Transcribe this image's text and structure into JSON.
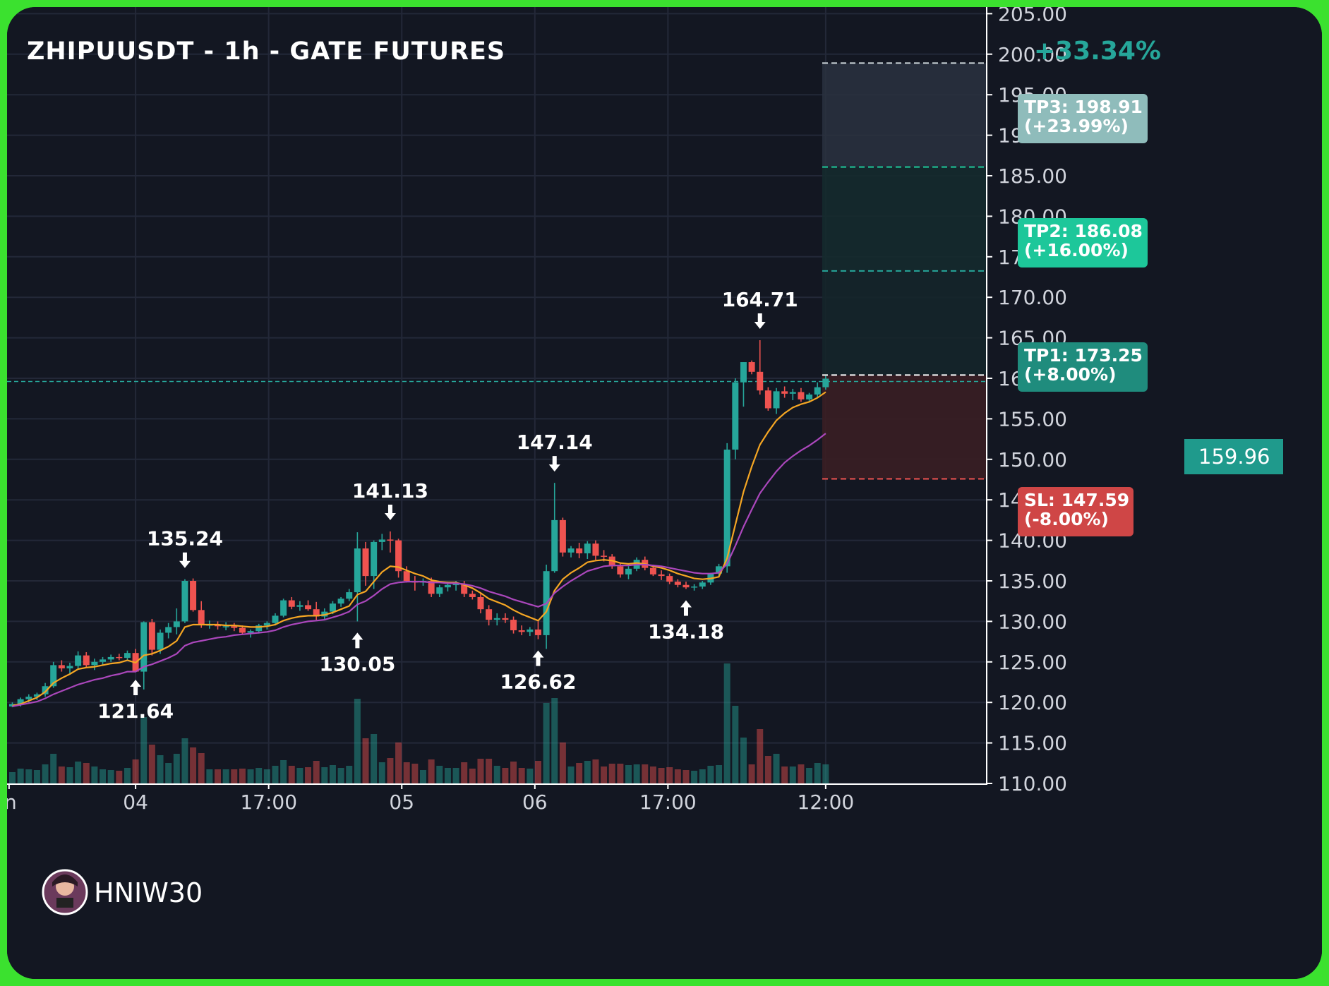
{
  "chart_data": {
    "type": "candlestick",
    "title": "ZHIPUUSDT - 1h - GATE FUTURES",
    "ylim": [
      110,
      205
    ],
    "y_ticks": [
      "205.00",
      "200.00",
      "195.00",
      "190.00",
      "185.00",
      "180.00",
      "175.00",
      "170.00",
      "165.00",
      "160.00",
      "155.00",
      "150.00",
      "145.00",
      "140.00",
      "135.00",
      "130.00",
      "125.00",
      "120.00",
      "115.00",
      "110.00"
    ],
    "x_ticks": [
      "n",
      "04",
      "17:00",
      "05",
      "06",
      "17:00",
      "12:00"
    ],
    "current_price": "159.96",
    "position_change": "+33.34%",
    "targets": [
      {
        "label": "TP3: 198.91",
        "pct": "(+23.99%)",
        "price": 198.91
      },
      {
        "label": "TP2: 186.08",
        "pct": "(+16.00%)",
        "price": 186.08
      },
      {
        "label": "TP1: 173.25",
        "pct": "(+8.00%)",
        "price": 173.25
      },
      {
        "label": "SL: 147.59",
        "pct": "(-8.00%)",
        "price": 147.59
      }
    ],
    "entry_price": 160.4,
    "annotations": [
      {
        "text": "121.64",
        "type": "low"
      },
      {
        "text": "135.24",
        "type": "high"
      },
      {
        "text": "130.05",
        "type": "low"
      },
      {
        "text": "141.13",
        "type": "high"
      },
      {
        "text": "126.62",
        "type": "low"
      },
      {
        "text": "147.14",
        "type": "high"
      },
      {
        "text": "134.18",
        "type": "low"
      },
      {
        "text": "164.71",
        "type": "high"
      }
    ],
    "candles": [
      [
        119.5,
        120.0,
        119.4,
        119.8
      ],
      [
        119.8,
        120.6,
        119.5,
        120.4
      ],
      [
        120.4,
        121.0,
        120.0,
        120.7
      ],
      [
        120.7,
        121.2,
        120.3,
        121.0
      ],
      [
        121.0,
        122.4,
        120.7,
        122.0
      ],
      [
        122.0,
        125.0,
        121.8,
        124.6
      ],
      [
        124.6,
        125.2,
        123.8,
        124.2
      ],
      [
        124.2,
        124.9,
        123.6,
        124.5
      ],
      [
        124.5,
        126.3,
        124.2,
        125.8
      ],
      [
        125.8,
        126.2,
        124.3,
        124.6
      ],
      [
        124.6,
        125.4,
        124.0,
        125.0
      ],
      [
        125.0,
        125.6,
        124.6,
        125.3
      ],
      [
        125.3,
        125.9,
        125.0,
        125.6
      ],
      [
        125.6,
        126.0,
        125.2,
        125.5
      ],
      [
        125.5,
        126.4,
        125.2,
        126.1
      ],
      [
        126.1,
        126.6,
        124.2,
        123.8
      ],
      [
        123.8,
        130.0,
        121.6,
        129.9
      ],
      [
        129.9,
        130.3,
        125.8,
        126.5
      ],
      [
        126.5,
        129.0,
        126.0,
        128.6
      ],
      [
        128.6,
        129.8,
        127.9,
        129.3
      ],
      [
        129.3,
        131.6,
        128.4,
        130.0
      ],
      [
        130.0,
        135.2,
        129.8,
        135.0
      ],
      [
        135.0,
        135.3,
        131.2,
        131.4
      ],
      [
        131.4,
        132.5,
        129.2,
        129.6
      ],
      [
        129.6,
        130.1,
        129.1,
        129.6
      ],
      [
        129.6,
        130.0,
        129.0,
        129.4
      ],
      [
        129.4,
        129.9,
        128.9,
        129.4
      ],
      [
        129.4,
        129.8,
        128.8,
        129.2
      ],
      [
        129.2,
        129.5,
        128.4,
        128.6
      ],
      [
        128.6,
        129.0,
        128.0,
        128.8
      ],
      [
        128.8,
        129.7,
        128.5,
        129.5
      ],
      [
        129.5,
        130.0,
        129.0,
        129.8
      ],
      [
        129.8,
        131.0,
        129.5,
        130.7
      ],
      [
        130.7,
        132.8,
        130.5,
        132.6
      ],
      [
        132.6,
        133.0,
        131.5,
        131.8
      ],
      [
        131.8,
        132.5,
        131.3,
        132.0
      ],
      [
        132.0,
        132.6,
        131.3,
        131.5
      ],
      [
        131.5,
        132.4,
        130.2,
        130.6
      ],
      [
        130.6,
        131.6,
        130.3,
        131.2
      ],
      [
        131.2,
        132.5,
        130.9,
        132.2
      ],
      [
        132.2,
        133.0,
        131.8,
        132.8
      ],
      [
        132.8,
        134.0,
        132.5,
        133.6
      ],
      [
        133.6,
        141.0,
        130.0,
        139.0
      ],
      [
        139.0,
        139.8,
        134.4,
        135.6
      ],
      [
        135.6,
        140.0,
        134.0,
        139.8
      ],
      [
        139.8,
        140.8,
        138.8,
        140.1
      ],
      [
        140.1,
        141.1,
        138.5,
        140.0
      ],
      [
        140.0,
        140.2,
        135.4,
        136.2
      ],
      [
        136.2,
        136.8,
        134.8,
        135.0
      ],
      [
        135.0,
        135.6,
        133.8,
        134.8
      ],
      [
        134.8,
        135.3,
        134.4,
        135.0
      ],
      [
        135.0,
        135.4,
        133.0,
        133.4
      ],
      [
        133.4,
        134.5,
        133.0,
        134.2
      ],
      [
        134.2,
        134.9,
        133.7,
        134.5
      ],
      [
        134.5,
        135.0,
        133.8,
        134.6
      ],
      [
        134.6,
        135.0,
        133.0,
        133.4
      ],
      [
        133.4,
        133.8,
        132.7,
        133.0
      ],
      [
        133.0,
        133.5,
        131.0,
        131.5
      ],
      [
        131.5,
        132.0,
        129.5,
        130.2
      ],
      [
        130.2,
        131.0,
        129.5,
        130.4
      ],
      [
        130.4,
        131.0,
        129.8,
        130.2
      ],
      [
        130.2,
        130.6,
        128.5,
        128.9
      ],
      [
        128.9,
        129.5,
        128.3,
        128.7
      ],
      [
        128.7,
        129.3,
        128.2,
        129.0
      ],
      [
        129.0,
        130.0,
        127.8,
        128.3
      ],
      [
        128.3,
        137.0,
        126.6,
        136.2
      ],
      [
        136.2,
        147.1,
        136.0,
        142.5
      ],
      [
        142.5,
        142.8,
        138.0,
        138.5
      ],
      [
        138.5,
        139.3,
        137.9,
        139.0
      ],
      [
        139.0,
        139.7,
        137.8,
        138.4
      ],
      [
        138.4,
        139.9,
        137.7,
        139.6
      ],
      [
        139.6,
        140.0,
        137.6,
        138.1
      ],
      [
        138.1,
        138.8,
        137.4,
        138.0
      ],
      [
        138.0,
        138.3,
        136.5,
        136.8
      ],
      [
        136.8,
        137.2,
        135.4,
        135.8
      ],
      [
        135.8,
        136.8,
        135.2,
        136.5
      ],
      [
        136.5,
        137.9,
        136.2,
        137.6
      ],
      [
        137.6,
        138.0,
        136.3,
        136.6
      ],
      [
        136.6,
        137.0,
        135.6,
        135.8
      ],
      [
        135.8,
        136.3,
        135.1,
        135.6
      ],
      [
        135.6,
        135.9,
        134.6,
        134.9
      ],
      [
        134.9,
        135.2,
        134.2,
        134.5
      ],
      [
        134.5,
        134.9,
        134.0,
        134.2
      ],
      [
        134.2,
        134.6,
        133.8,
        134.3
      ],
      [
        134.3,
        135.0,
        134.0,
        134.8
      ],
      [
        134.8,
        136.0,
        134.5,
        135.9
      ],
      [
        135.9,
        137.1,
        135.5,
        136.8
      ],
      [
        136.8,
        152.0,
        136.0,
        151.2
      ],
      [
        151.2,
        160.0,
        150.0,
        159.5
      ],
      [
        159.5,
        162.0,
        156.5,
        162.0
      ],
      [
        162.0,
        162.2,
        160.5,
        160.8
      ],
      [
        160.8,
        164.7,
        158.0,
        158.5
      ],
      [
        158.5,
        158.9,
        156.0,
        156.3
      ],
      [
        156.3,
        158.8,
        155.6,
        158.4
      ],
      [
        158.4,
        159.0,
        157.6,
        158.1
      ],
      [
        158.1,
        158.7,
        157.3,
        158.3
      ],
      [
        158.3,
        158.8,
        157.1,
        157.4
      ],
      [
        157.4,
        158.2,
        157.0,
        158.0
      ],
      [
        158.0,
        159.5,
        157.6,
        158.9
      ],
      [
        158.9,
        160.3,
        158.6,
        159.96
      ]
    ],
    "ema_short": [
      119.6,
      119.8,
      120.2,
      120.6,
      121.3,
      122.4,
      123.0,
      123.5,
      124.1,
      124.3,
      124.4,
      124.6,
      124.8,
      124.9,
      125.2,
      124.9,
      125.8,
      126.0,
      126.4,
      126.9,
      127.6,
      129.3,
      129.6,
      129.6,
      129.6,
      129.6,
      129.5,
      129.5,
      129.4,
      129.3,
      129.3,
      129.4,
      129.6,
      130.1,
      130.4,
      130.6,
      130.7,
      130.7,
      130.8,
      131.1,
      131.5,
      131.9,
      133.3,
      133.7,
      134.9,
      136.1,
      136.8,
      136.7,
      136.3,
      135.9,
      135.6,
      135.1,
      134.9,
      134.8,
      134.8,
      134.5,
      134.1,
      133.5,
      132.8,
      132.4,
      132.0,
      131.4,
      130.9,
      130.5,
      130.1,
      131.2,
      133.8,
      135.2,
      136.0,
      136.6,
      137.3,
      137.5,
      137.6,
      137.5,
      137.2,
      137.1,
      137.2,
      137.1,
      136.8,
      136.6,
      136.3,
      135.9,
      135.6,
      135.3,
      135.2,
      135.3,
      135.5,
      137.8,
      141.9,
      146.0,
      149.1,
      151.8,
      153.4,
      154.8,
      155.7,
      156.4,
      156.8,
      157.1,
      157.6,
      158.3
    ],
    "ema_long": [
      119.5,
      119.7,
      119.9,
      120.1,
      120.5,
      121.0,
      121.4,
      121.8,
      122.2,
      122.5,
      122.8,
      123.0,
      123.3,
      123.5,
      123.8,
      123.8,
      124.4,
      124.7,
      125.1,
      125.5,
      126.0,
      127.0,
      127.4,
      127.6,
      127.8,
      128.0,
      128.1,
      128.3,
      128.4,
      128.5,
      128.6,
      128.7,
      128.9,
      129.3,
      129.6,
      129.8,
      130.0,
      130.1,
      130.2,
      130.5,
      130.8,
      131.2,
      132.1,
      132.5,
      133.2,
      134.0,
      134.6,
      134.8,
      134.9,
      134.9,
      134.9,
      134.8,
      134.8,
      134.7,
      134.7,
      134.6,
      134.4,
      134.1,
      133.7,
      133.4,
      133.1,
      132.7,
      132.4,
      132.1,
      131.8,
      132.2,
      133.5,
      134.3,
      135.0,
      135.6,
      136.2,
      136.5,
      136.8,
      136.9,
      136.9,
      136.9,
      137.0,
      137.0,
      136.9,
      136.8,
      136.6,
      136.4,
      136.2,
      136.0,
      135.9,
      135.9,
      136.0,
      137.1,
      139.3,
      141.7,
      143.8,
      145.8,
      147.2,
      148.5,
      149.6,
      150.4,
      151.1,
      151.7,
      152.4,
      153.2
    ]
  },
  "watermark": {
    "text": "HNIW30"
  },
  "colors": {
    "background": "#131722",
    "up": "#26a69a",
    "down": "#ef5350",
    "ema_short": "#f5a623",
    "ema_long": "#ab47bc",
    "tp3_box": "#8fbcbb",
    "tp2_box": "#1dc79a",
    "tp1_box": "#1f8c7d",
    "sl_box": "#cf4646",
    "border": "#3be12f"
  }
}
